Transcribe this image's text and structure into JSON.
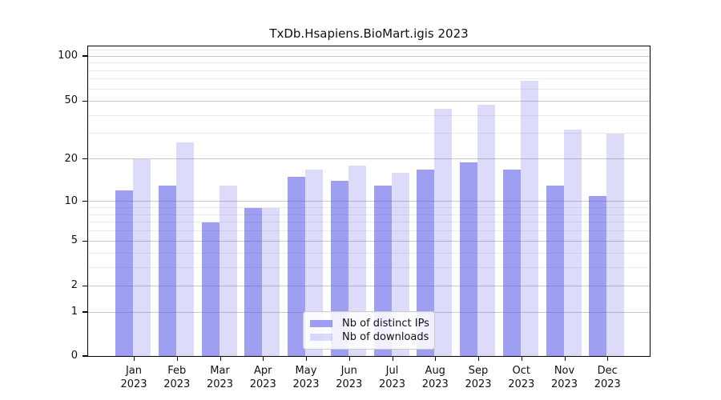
{
  "title": "TxDb.Hsapiens.BioMart.igis 2023",
  "style": {
    "ips_color": "rgba(80,80,230,0.55)",
    "downloads_color": "rgba(80,80,230,0.20)",
    "grid_major_color": "#c9c9c9",
    "grid_minor_color": "#ececec",
    "axis_color": "#000000",
    "text_color": "#111111",
    "legend_bg": "rgba(255,255,255,0.85)",
    "legend_border": "#cccccc"
  },
  "y_axis": {
    "tick_labels": [
      100,
      50,
      20,
      10,
      5,
      2,
      1,
      0
    ],
    "major_gridlines": [
      1,
      2,
      5,
      10,
      20,
      50,
      100
    ],
    "minor_gridlines": [
      3,
      4,
      6,
      7,
      8,
      9,
      30,
      40,
      60,
      70,
      80,
      90,
      110
    ],
    "max_value": 116,
    "log_offset": 1.05
  },
  "chart_data": {
    "type": "bar",
    "title": "TxDb.Hsapiens.BioMart.igis 2023",
    "categories": [
      "Jan 2023",
      "Feb 2023",
      "Mar 2023",
      "Apr 2023",
      "May 2023",
      "Jun 2023",
      "Jul 2023",
      "Aug 2023",
      "Sep 2023",
      "Oct 2023",
      "Nov 2023",
      "Dec 2023"
    ],
    "series": [
      {
        "name": "Nb of distinct IPs",
        "values": [
          12,
          13,
          7,
          9,
          15,
          14,
          13,
          17,
          19,
          17,
          13,
          11
        ]
      },
      {
        "name": "Nb of downloads",
        "values": [
          20,
          26,
          13,
          9,
          17,
          18,
          16,
          44,
          47,
          68,
          32,
          30
        ]
      }
    ],
    "xlabel": "",
    "ylabel": "",
    "yscale": "log-like: y ~ ln(value + 1.05), linear-capped at 0",
    "yticks": [
      0,
      1,
      2,
      5,
      10,
      20,
      50,
      100
    ],
    "ylim": [
      0,
      116
    ],
    "grid": true,
    "legend_position": "lower center"
  }
}
